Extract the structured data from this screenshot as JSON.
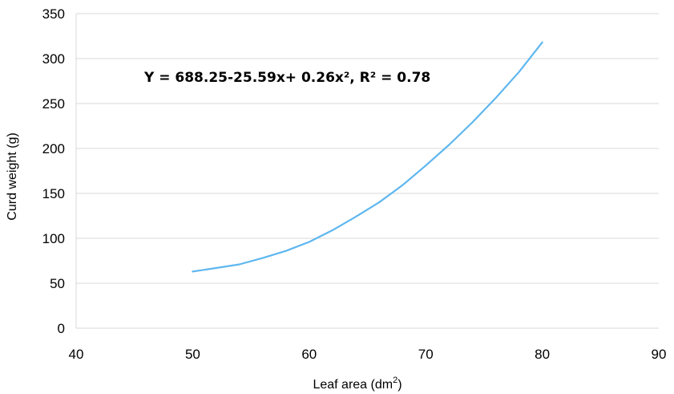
{
  "chart_data": {
    "type": "line",
    "xlabel": "Leaf area (dm",
    "xlabel_sup": "2",
    "xlabel_suffix": ")",
    "ylabel": "Curd weight (g)",
    "xlim": [
      40,
      90
    ],
    "ylim": [
      0,
      350
    ],
    "xticks": [
      40,
      50,
      60,
      70,
      80,
      90
    ],
    "yticks": [
      0,
      50,
      100,
      150,
      200,
      250,
      300,
      350
    ],
    "grid": "horizontal",
    "annotation": "Y = 688.25-25.59x+ 0.26x², R² = 0.78",
    "series": [
      {
        "color": "#5fb7ef",
        "x": [
          50,
          52,
          54,
          56,
          58,
          60,
          62,
          64,
          66,
          68,
          70,
          72,
          74,
          76,
          78,
          80
        ],
        "y": [
          63,
          67,
          71,
          78,
          86,
          96,
          109,
          124,
          140,
          159,
          181,
          204,
          229,
          256,
          285,
          318
        ]
      }
    ]
  }
}
